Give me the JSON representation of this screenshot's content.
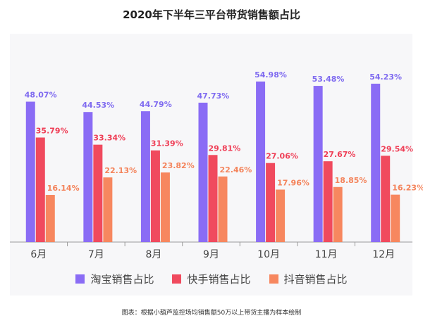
{
  "title": "2020年下半年三平台带货销售额占比",
  "note": "图表：根据小葫芦监控场均销售额50万以上带货主播为样本绘制",
  "chart_data": {
    "type": "bar",
    "categories": [
      "6月",
      "7月",
      "8月",
      "9月",
      "10月",
      "11月",
      "12月"
    ],
    "series": [
      {
        "name": "淘宝销售占比",
        "color": "#8a6cf5",
        "label_color": "#7f6bf0",
        "values": [
          48.07,
          44.53,
          44.79,
          47.73,
          54.98,
          53.48,
          54.23
        ],
        "labels": [
          "48.07%",
          "44.53%",
          "44.79%",
          "47.73%",
          "54.98%",
          "53.48%",
          "54.23%"
        ]
      },
      {
        "name": "快手销售占比",
        "color": "#f04a5e",
        "label_color": "#ef3e56",
        "values": [
          35.79,
          33.34,
          31.39,
          29.81,
          27.06,
          27.67,
          29.54
        ],
        "labels": [
          "35.79%",
          "33.34%",
          "31.39%",
          "29.81%",
          "27.06%",
          "27.67%",
          "29.54%"
        ]
      },
      {
        "name": "抖音销售占比",
        "color": "#f7875f",
        "label_color": "#f4845c",
        "values": [
          16.14,
          22.13,
          23.82,
          22.46,
          17.96,
          18.85,
          16.23
        ],
        "labels": [
          "16.14%",
          "22.13%",
          "23.82%",
          "22.46%",
          "17.96%",
          "18.85%",
          "16.23%"
        ]
      }
    ],
    "ylim": [
      0,
      60
    ],
    "grid": false,
    "legend_position": "bottom"
  }
}
